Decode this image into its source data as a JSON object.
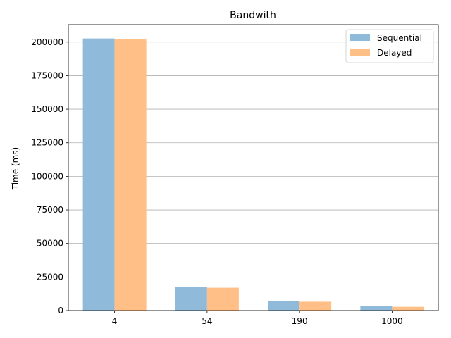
{
  "chart_data": {
    "type": "bar",
    "title": "Bandwith",
    "xlabel": "",
    "ylabel": "Time (ms)",
    "categories": [
      "4",
      "54",
      "190",
      "1000"
    ],
    "series": [
      {
        "name": "Sequential",
        "values": [
          202700,
          17600,
          7100,
          3400
        ],
        "color": "#8fbad9"
      },
      {
        "name": "Delayed",
        "values": [
          202100,
          17000,
          6600,
          2800
        ],
        "color": "#ffbf86"
      }
    ],
    "ylim": [
      0,
      213000
    ],
    "yticks": [
      0,
      25000,
      50000,
      75000,
      100000,
      125000,
      150000,
      175000,
      200000
    ],
    "ytick_labels": [
      "0",
      "25000",
      "50000",
      "75000",
      "100000",
      "125000",
      "150000",
      "175000",
      "200000"
    ],
    "grid": "y-major",
    "legend_position": "top-right"
  }
}
